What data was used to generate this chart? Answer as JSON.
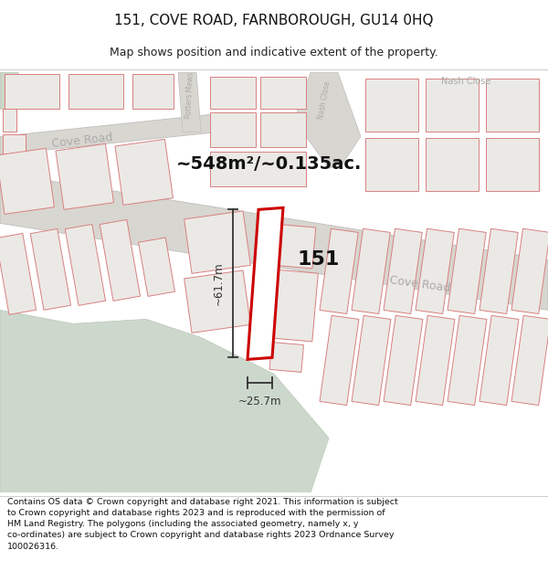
{
  "title": "151, COVE ROAD, FARNBOROUGH, GU14 0HQ",
  "subtitle": "Map shows position and indicative extent of the property.",
  "footer_line1": "Contains OS data © Crown copyright and database right 2021. This information is subject to Crown copyright and database rights 2023 and is reproduced with the permission of",
  "footer_line2": "HM Land Registry. The polygons (including the associated geometry, namely x, y co-ordinates) are subject to Crown copyright and database rights 2023 Ordnance Survey 100026316.",
  "area_label": "~548m²/~0.135ac.",
  "property_number": "151",
  "dim_width": "~25.7m",
  "dim_height": "~61.7m",
  "map_bg": "#f2f0ed",
  "road_fill": "#d8d6d0",
  "block_fill": "#ebe9e5",
  "block_stroke": "#d88080",
  "green_fill": "#cdd8cc",
  "green_stroke": "#b8c8b5",
  "highlight_stroke": "#cc0000",
  "road_label_color": "#aaaaaa",
  "dim_line_color": "#333333",
  "title_fontsize": 11,
  "subtitle_fontsize": 9,
  "footer_fontsize": 6.8,
  "road_label_size": 9,
  "area_label_size": 14,
  "prop_num_size": 16
}
